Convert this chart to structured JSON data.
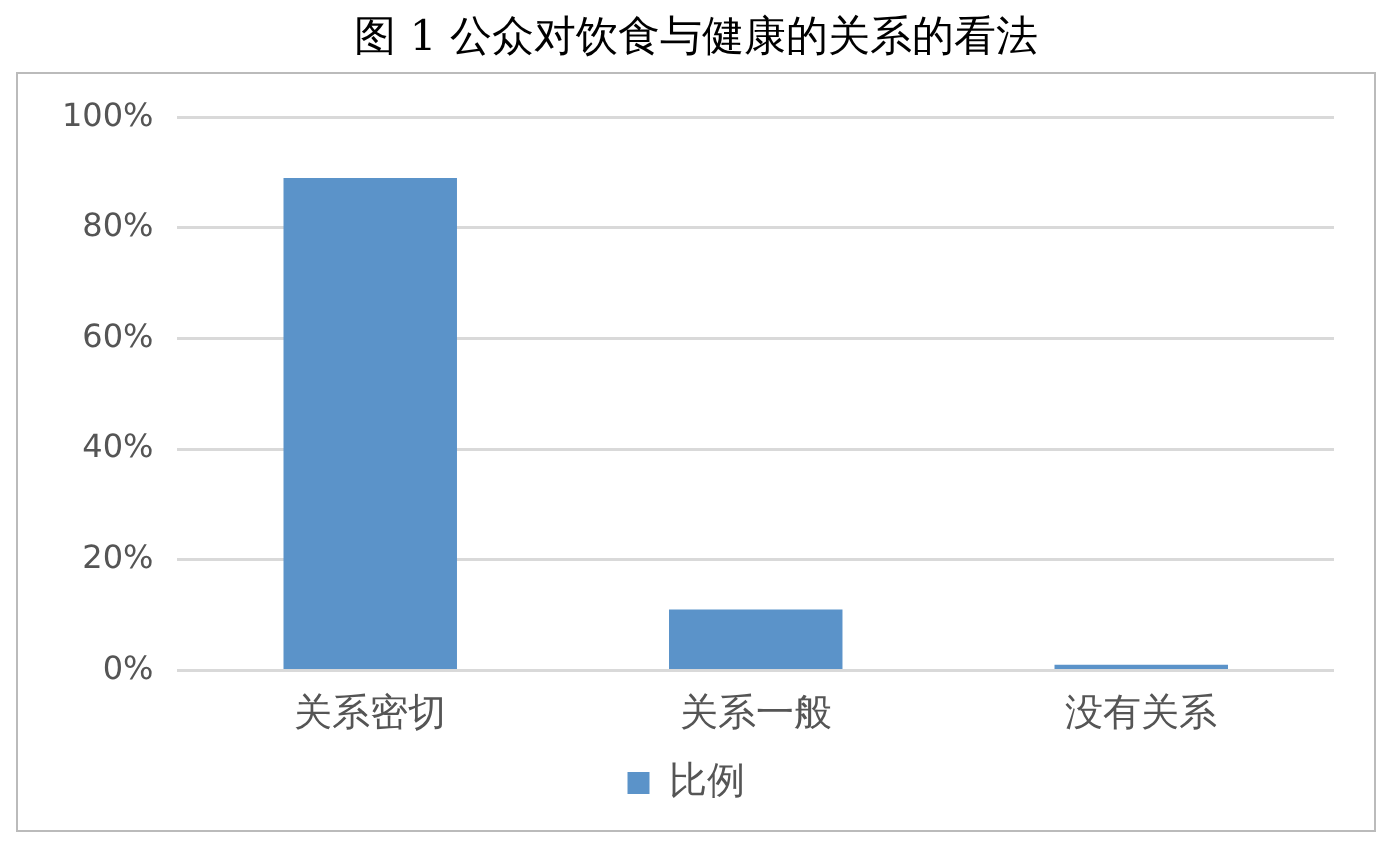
{
  "chart_data": {
    "type": "bar",
    "title": "图 1  公众对饮食与健康的关系的看法",
    "categories": [
      "关系密切",
      "关系一般",
      "没有关系"
    ],
    "series": [
      {
        "name": "比例",
        "color": "#5b93c9",
        "values": [
          89,
          11,
          1
        ]
      }
    ],
    "ylim": [
      0,
      100
    ],
    "yticks": [
      {
        "value": 0,
        "label": "0%"
      },
      {
        "value": 20,
        "label": "20%"
      },
      {
        "value": 40,
        "label": "40%"
      },
      {
        "value": 60,
        "label": "60%"
      },
      {
        "value": 80,
        "label": "80%"
      },
      {
        "value": 100,
        "label": "100%"
      }
    ],
    "grid": "y",
    "legend": "bottom"
  }
}
